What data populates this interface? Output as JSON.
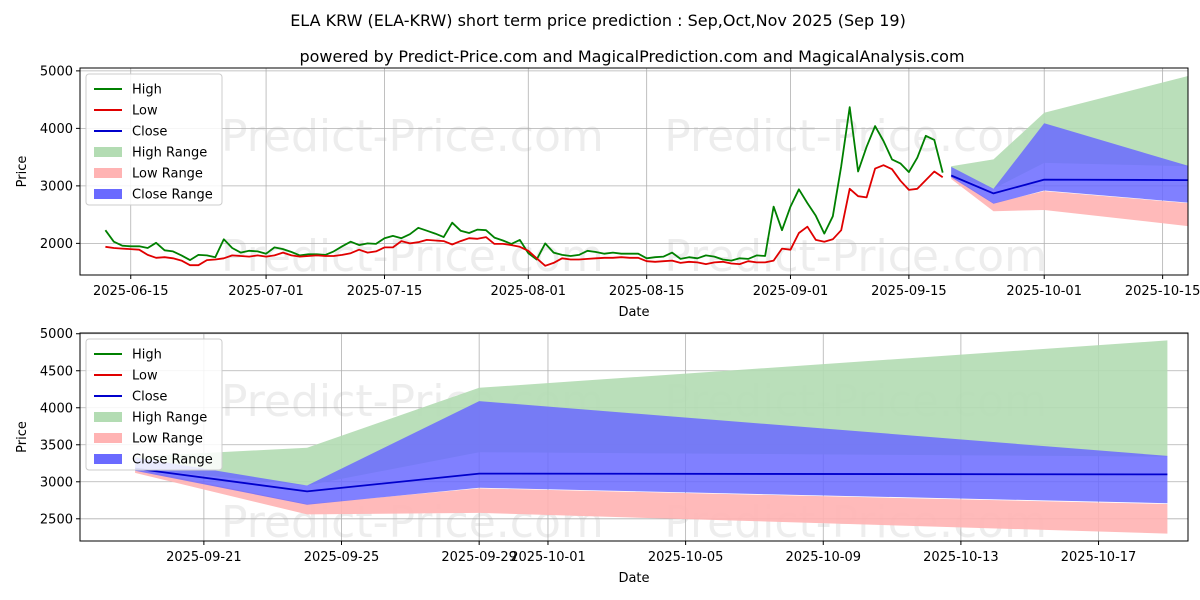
{
  "title": "ELA KRW (ELA-KRW) short term price prediction : Sep,Oct,Nov 2025 (Sep 19)",
  "subtitle": "powered by Predict-Price.com and MagicalPrediction.com and MagicalAnalysis.com",
  "watermark": "Predict-Price.com",
  "colors": {
    "high": "#008000",
    "low": "#e00000",
    "close": "#0000cc",
    "high_range": "#b3dcb3",
    "low_range": "#ffb3b3",
    "close_range": "#6a6aff",
    "grid": "#b0b0b0"
  },
  "legend": [
    "High",
    "Low",
    "Close",
    "High Range",
    "Low Range",
    "Close Range"
  ],
  "chart_data": [
    {
      "type": "line",
      "xlabel": "Date",
      "ylabel": "Price",
      "xlim": [
        -6,
        125
      ],
      "ylim": [
        1450,
        5050
      ],
      "xticks": [
        {
          "x": 0,
          "label": "2025-06-15"
        },
        {
          "x": 16,
          "label": "2025-07-01"
        },
        {
          "x": 30,
          "label": "2025-07-15"
        },
        {
          "x": 47,
          "label": "2025-08-01"
        },
        {
          "x": 61,
          "label": "2025-08-15"
        },
        {
          "x": 78,
          "label": "2025-09-01"
        },
        {
          "x": 92,
          "label": "2025-09-15"
        },
        {
          "x": 108,
          "label": "2025-10-01"
        },
        {
          "x": 122,
          "label": "2025-10-15"
        }
      ],
      "yticks": [
        2000,
        3000,
        4000,
        5000
      ],
      "x_start": -3,
      "series": [
        {
          "name": "High",
          "values": [
            2230,
            2030,
            1960,
            1950,
            1950,
            1920,
            2010,
            1880,
            1860,
            1790,
            1710,
            1800,
            1790,
            1760,
            2070,
            1920,
            1840,
            1870,
            1860,
            1820,
            1930,
            1900,
            1850,
            1790,
            1810,
            1810,
            1800,
            1860,
            1950,
            2030,
            1970,
            2000,
            1990,
            2090,
            2130,
            2090,
            2160,
            2270,
            2220,
            2170,
            2110,
            2360,
            2220,
            2180,
            2240,
            2230,
            2100,
            2050,
            1990,
            2060,
            1830,
            1720,
            2000,
            1840,
            1800,
            1780,
            1800,
            1870,
            1850,
            1820,
            1840,
            1820,
            1820,
            1820,
            1740,
            1760,
            1770,
            1840,
            1730,
            1760,
            1740,
            1790,
            1770,
            1720,
            1700,
            1740,
            1730,
            1790,
            1780,
            2640,
            2230,
            2640,
            2940,
            2700,
            2480,
            2170,
            2470,
            3340,
            4370,
            3250,
            3680,
            4040,
            3780,
            3460,
            3390,
            3240,
            3490,
            3870,
            3800,
            3230
          ]
        },
        {
          "name": "Low",
          "values": [
            1940,
            1920,
            1910,
            1900,
            1890,
            1800,
            1750,
            1760,
            1740,
            1700,
            1620,
            1620,
            1710,
            1720,
            1740,
            1790,
            1780,
            1770,
            1790,
            1770,
            1790,
            1840,
            1790,
            1770,
            1780,
            1790,
            1780,
            1780,
            1800,
            1830,
            1890,
            1840,
            1860,
            1930,
            1930,
            2040,
            2000,
            2020,
            2060,
            2050,
            2040,
            1980,
            2040,
            2090,
            2080,
            2110,
            1990,
            1990,
            1970,
            1940,
            1870,
            1740,
            1610,
            1660,
            1740,
            1720,
            1720,
            1730,
            1740,
            1750,
            1750,
            1760,
            1750,
            1750,
            1690,
            1680,
            1690,
            1700,
            1660,
            1680,
            1670,
            1640,
            1670,
            1680,
            1650,
            1640,
            1690,
            1670,
            1670,
            1700,
            1910,
            1890,
            2180,
            2290,
            2060,
            2030,
            2070,
            2230,
            2950,
            2820,
            2800,
            3300,
            3360,
            3290,
            3090,
            2930,
            2950,
            3100,
            3250,
            3150
          ]
        },
        {
          "name": "Close",
          "x": [
            97,
            102,
            108,
            125
          ],
          "values": [
            3180,
            2870,
            3110,
            3100
          ]
        }
      ],
      "bands": [
        {
          "name": "High Range",
          "x": [
            97,
            102,
            108,
            125
          ],
          "upper": [
            3340,
            3460,
            4270,
            4910
          ],
          "lower": [
            3180,
            2950,
            3400,
            3340
          ]
        },
        {
          "name": "Low Range",
          "x": [
            97,
            102,
            108,
            125
          ],
          "upper": [
            3180,
            2700,
            2910,
            2700
          ],
          "lower": [
            3120,
            2560,
            2580,
            2300
          ]
        },
        {
          "name": "Close Range",
          "x": [
            97,
            102,
            108,
            125
          ],
          "upper": [
            3330,
            2950,
            4090,
            3350
          ],
          "lower": [
            3150,
            2690,
            2920,
            2710
          ]
        }
      ]
    },
    {
      "type": "line",
      "xlabel": "Date",
      "ylabel": "Price",
      "xlim": [
        -1.6,
        30.6
      ],
      "ylim": [
        2200,
        5010
      ],
      "xticks": [
        {
          "x": 2,
          "label": "2025-09-21"
        },
        {
          "x": 6,
          "label": "2025-09-25"
        },
        {
          "x": 10,
          "label": "2025-09-29"
        },
        {
          "x": 12,
          "label": "2025-10-01"
        },
        {
          "x": 16,
          "label": "2025-10-05"
        },
        {
          "x": 20,
          "label": "2025-10-09"
        },
        {
          "x": 24,
          "label": "2025-10-13"
        },
        {
          "x": 28,
          "label": "2025-10-17"
        }
      ],
      "yticks": [
        2500,
        3000,
        3500,
        4000,
        4500,
        5000
      ],
      "series": [
        {
          "name": "Close",
          "x": [
            0,
            5,
            10,
            30
          ],
          "values": [
            3180,
            2870,
            3110,
            3100
          ]
        }
      ],
      "bands": [
        {
          "name": "High Range",
          "x": [
            0,
            5,
            10,
            30
          ],
          "upper": [
            3340,
            3460,
            4270,
            4910
          ],
          "lower": [
            3180,
            2950,
            3400,
            3340
          ]
        },
        {
          "name": "Low Range",
          "x": [
            0,
            5,
            10,
            30
          ],
          "upper": [
            3180,
            2700,
            2910,
            2700
          ],
          "lower": [
            3120,
            2560,
            2580,
            2300
          ]
        },
        {
          "name": "Close Range",
          "x": [
            0,
            5,
            10,
            30
          ],
          "upper": [
            3330,
            2950,
            4090,
            3350
          ],
          "lower": [
            3150,
            2690,
            2920,
            2710
          ]
        }
      ]
    }
  ]
}
